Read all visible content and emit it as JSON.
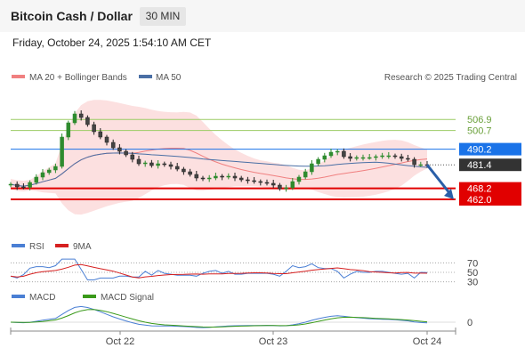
{
  "header": {
    "title": "Bitcoin Cash / Dollar",
    "timeframe": "30 MIN"
  },
  "date_line": "Friday, October 24, 2025 1:54:10 AM CET",
  "copyright": "Research © 2025 Trading Central",
  "legend": {
    "ma20_bb": "MA 20 + Bollinger Bands",
    "ma50": "MA 50"
  },
  "levels": {
    "green": [
      "506.9",
      "500.7"
    ],
    "blue": [
      "490.2"
    ],
    "current": "481.4",
    "red": [
      "468.2",
      "462.0"
    ]
  },
  "colors": {
    "green_level": "#9ccc65",
    "green_text": "#6aa03a",
    "blue_level": "#1a73e8",
    "red_level": "#e10000",
    "current_tag": "#333333",
    "bollinger_fill": "#fbd6d6",
    "ma20": "#f08080",
    "ma50": "#4a6fa5",
    "candle_up": "#2e8b2e",
    "candle_down": "#222222",
    "rsi": "#4a7fd4",
    "rsi_ma": "#d62020",
    "macd": "#4a7fd4",
    "macd_signal": "#3a9a1a",
    "arrow": "#2a5fa8"
  },
  "rsi_panel": {
    "rsi_label": "RSI",
    "ma_label": "9MA",
    "levels": [
      "70",
      "50",
      "30"
    ]
  },
  "macd_panel": {
    "macd_label": "MACD",
    "signal_label": "MACD Signal",
    "zero_label": "0"
  },
  "x_axis": {
    "labels": [
      "Oct 22",
      "Oct 23",
      "Oct 24"
    ]
  },
  "chart_data": {
    "type": "candlestick",
    "instrument": "Bitcoin Cash / Dollar",
    "timeframe": "30 MIN",
    "y_range": [
      444,
      524
    ],
    "horizontal_levels": [
      {
        "value": 506.9,
        "role": "resistance"
      },
      {
        "value": 500.7,
        "role": "resistance"
      },
      {
        "value": 490.2,
        "role": "pivot"
      },
      {
        "value": 481.4,
        "role": "last"
      },
      {
        "value": 468.2,
        "role": "support"
      },
      {
        "value": 462.0,
        "role": "support"
      }
    ],
    "close": [
      470.5,
      469.0,
      468.8,
      471.5,
      474.5,
      477.0,
      478.5,
      480.5,
      497.0,
      505.0,
      510.0,
      508.0,
      504.0,
      500.0,
      497.0,
      494.0,
      491.0,
      489.0,
      487.0,
      484.5,
      482.0,
      482.5,
      481.0,
      482.0,
      481.5,
      480.5,
      479.0,
      477.5,
      476.0,
      474.0,
      473.5,
      474.0,
      475.0,
      474.5,
      475.0,
      474.0,
      473.0,
      472.5,
      472.0,
      471.5,
      471.0,
      470.0,
      468.0,
      468.5,
      472.0,
      474.5,
      477.5,
      482.0,
      484.5,
      486.5,
      488.5,
      489.0,
      486.0,
      485.0,
      485.5,
      485.5,
      485.5,
      486.0,
      486.5,
      486.5,
      486.0,
      485.0,
      484.5,
      481.5,
      481.5,
      481.4
    ],
    "rsi_levels": [
      70,
      50,
      30
    ],
    "macd_zero": 0
  }
}
